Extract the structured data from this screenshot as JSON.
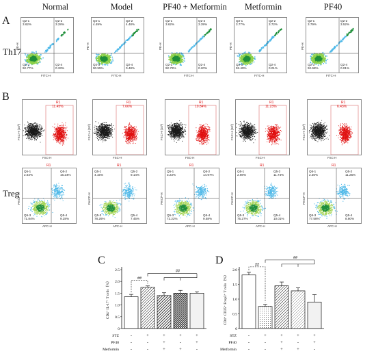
{
  "columns": [
    "Normal",
    "Model",
    "PF40 + Metformin",
    "Metformin",
    "PF40"
  ],
  "panel_labels": {
    "a": "A",
    "b": "B",
    "c": "C",
    "d": "D"
  },
  "row_labels": {
    "th17": "Th17",
    "treg": "Treg"
  },
  "th17": {
    "x_axis": "FITC-H",
    "y_axis": "PE-H",
    "plots": [
      {
        "q1": "Q2-1",
        "q1v": "3.62%",
        "q2": "Q2-2",
        "q2v": "3.28%",
        "q3": "Q2-3",
        "q3v": "92.77%",
        "q4": "Q2-4",
        "q4v": "0.33%"
      },
      {
        "q1": "Q2-1",
        "q1v": "4.49%",
        "q2": "Q2-2",
        "q2v": "4.48%",
        "q3": "Q2-3",
        "q3v": "90.55%",
        "q4": "Q2-4",
        "q4v": "0.48%"
      },
      {
        "q1": "Q2-1",
        "q1v": "3.62%",
        "q2": "Q2-2",
        "q2v": "3.39%",
        "q3": "Q2-3",
        "q3v": "92.79%",
        "q4": "Q2-4",
        "q4v": "0.20%"
      },
      {
        "q1": "Q2-1",
        "q1v": "3.77%",
        "q2": "Q2-2",
        "q2v": "3.72%",
        "q3": "Q2-3",
        "q3v": "92.49%",
        "q4": "Q2-4",
        "q4v": "0.01%"
      },
      {
        "q1": "Q2-1",
        "q1v": "3.79%",
        "q2": "Q2-2",
        "q2v": "3.52%",
        "q3": "Q2-3",
        "q3v": "92.68%",
        "q4": "Q2-4",
        "q4v": "0.01%"
      }
    ]
  },
  "gate": {
    "x_axis": "FSC-H",
    "y_axis": "FSC-H (10³)",
    "gate_name": "R1",
    "plots": [
      {
        "value": "11.45%"
      },
      {
        "value": "7.66%"
      },
      {
        "value": "10.84%"
      },
      {
        "value": "11.23%"
      },
      {
        "value": "6.43%"
      }
    ]
  },
  "treg": {
    "x_axis": "APC-H",
    "y_axis": "PerCP-H",
    "gate_name": "R1",
    "plots": [
      {
        "q1": "Q5-1",
        "q1v": "2.64%",
        "q2": "Q5-2",
        "q2v": "16.24%",
        "q3": "Q5-3",
        "q3v": "71.84%",
        "q4": "Q5-4",
        "q4v": "9.28%"
      },
      {
        "q1": "Q5-1",
        "q1v": "4.15%",
        "q2": "Q5-2",
        "q2v": "9.14%",
        "q3": "Q5-3",
        "q3v": "78.26%",
        "q4": "Q5-4",
        "q4v": "7.45%"
      },
      {
        "q1": "Q5-1",
        "q1v": "3.23%",
        "q2": "Q5-2",
        "q2v": "14.97%",
        "q3": "Q5-3",
        "q3v": "72.22%",
        "q4": "Q5-4",
        "q4v": "9.58%"
      },
      {
        "q1": "Q5-1",
        "q1v": "2.98%",
        "q2": "Q5-2",
        "q2v": "11.74%",
        "q3": "Q5-3",
        "q3v": "75.27%",
        "q4": "Q5-4",
        "q4v": "10.01%"
      },
      {
        "q1": "Q5-1",
        "q1v": "2.36%",
        "q2": "Q5-2",
        "q2v": "11.25%",
        "q3": "Q5-3",
        "q3v": "77.58%",
        "q4": "Q5-4",
        "q4v": "8.80%"
      }
    ]
  },
  "chart_data": [
    {
      "type": "bar",
      "ylabel": "CD4⁺ IL-17⁺ T cells（%）",
      "ylim": [
        0,
        2.5
      ],
      "yticks": [
        "0",
        "0.5",
        "1.0",
        "1.5",
        "2.0",
        "2.5"
      ],
      "values": [
        1.35,
        1.75,
        1.4,
        1.5,
        1.5
      ],
      "errors": [
        0.1,
        0.06,
        0.12,
        0.12,
        0.06
      ],
      "patterns": [
        "white",
        "diag",
        "diag-dense",
        "cross",
        "light"
      ],
      "sig": [
        "##",
        "##"
      ],
      "treatment_rows": [
        {
          "label": "STZ",
          "marks": [
            "-",
            "+",
            "+",
            "+",
            "+"
          ]
        },
        {
          "label": "PF40",
          "marks": [
            "-",
            "-",
            "+",
            "-",
            "+"
          ]
        },
        {
          "label": "Metformin",
          "marks": [
            "-",
            "-",
            "+",
            "+",
            "-"
          ]
        }
      ]
    },
    {
      "type": "bar",
      "ylabel": "CD4⁺ CD25⁺ Foxp3⁺ T cells（%）",
      "ylim": [
        0,
        2.0
      ],
      "yticks": [
        "0",
        "0.5",
        "1.0",
        "1.5",
        "2.0"
      ],
      "values": [
        1.82,
        0.75,
        1.45,
        1.28,
        0.9
      ],
      "errors": [
        0.09,
        0.07,
        0.13,
        0.1,
        0.25
      ],
      "patterns": [
        "white",
        "dots",
        "diag",
        "diag-light",
        "light"
      ],
      "sig": [
        "##",
        "##"
      ],
      "treatment_rows": [
        {
          "label": "STZ",
          "marks": [
            "-",
            "+",
            "+",
            "+",
            "+"
          ]
        },
        {
          "label": "PF40",
          "marks": [
            "-",
            "-",
            "+",
            "-",
            "+"
          ]
        },
        {
          "label": "Metformin",
          "marks": [
            "-",
            "-",
            "+",
            "+",
            "-"
          ]
        }
      ]
    }
  ],
  "colors": {
    "scatter_black": "#1a1a1a",
    "scatter_red": "#e01010",
    "gate_line": "#e08080",
    "density_hot": "#1f8f3a",
    "density_mid": "#4db8e8",
    "density_low": "#1a3fa8"
  }
}
